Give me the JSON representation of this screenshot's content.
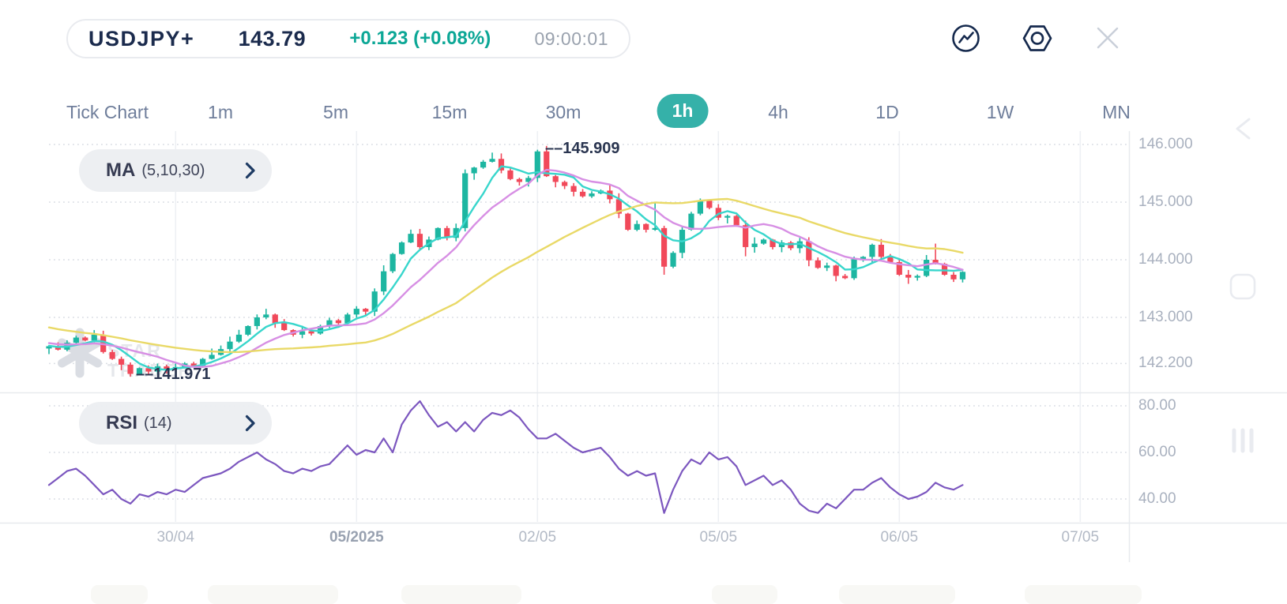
{
  "header": {
    "symbol": "USDJPY+",
    "price": "143.79",
    "change": "+0.123 (+0.08%)",
    "time": "09:00:01"
  },
  "toolbar_icons": [
    "trend-line-icon",
    "settings-nut-icon",
    "close-icon"
  ],
  "timeframes": {
    "items": [
      {
        "label": "Tick Chart",
        "active": false
      },
      {
        "label": "1m",
        "active": false
      },
      {
        "label": "5m",
        "active": false
      },
      {
        "label": "15m",
        "active": false
      },
      {
        "label": "30m",
        "active": false
      },
      {
        "label": "1h",
        "active": true
      },
      {
        "label": "4h",
        "active": false
      },
      {
        "label": "1D",
        "active": false
      },
      {
        "label": "1W",
        "active": false
      },
      {
        "label": "MN",
        "active": false
      }
    ]
  },
  "indicators": {
    "ma": {
      "name": "MA",
      "params": "(5,10,30)"
    },
    "rsi": {
      "name": "RSI",
      "params": "(14)"
    }
  },
  "watermark": {
    "line1": "STAR",
    "line2": "TRADER"
  },
  "chart_data": {
    "type": "candlestick",
    "instrument": "USDJPY+",
    "interval": "1h",
    "legend": [
      "MA (5,10,30)",
      "RSI (14)"
    ],
    "price_axis": {
      "ticks": [
        {
          "label": "146.000",
          "value": 146.0
        },
        {
          "label": "145.000",
          "value": 145.0
        },
        {
          "label": "144.000",
          "value": 144.0
        },
        {
          "label": "143.000",
          "value": 143.0
        },
        {
          "label": "142.200",
          "value": 142.2
        }
      ]
    },
    "rsi_axis": {
      "ticks": [
        {
          "label": "80.00",
          "value": 80
        },
        {
          "label": "60.00",
          "value": 60
        },
        {
          "label": "40.00",
          "value": 40
        }
      ]
    },
    "time_axis": {
      "ticks": [
        {
          "label": "30/04",
          "index": 14,
          "bold": false
        },
        {
          "label": "05/2025",
          "index": 34,
          "bold": true
        },
        {
          "label": "02/05",
          "index": 54,
          "bold": false
        },
        {
          "label": "05/05",
          "index": 74,
          "bold": false
        },
        {
          "label": "06/05",
          "index": 94,
          "bold": false
        },
        {
          "label": "07/05",
          "index": 114,
          "bold": false
        }
      ]
    },
    "key_levels": {
      "high": 145.909,
      "low": 141.971,
      "high_label": "––145.909",
      "low_label": "––141.971"
    },
    "candlesticks": {
      "lead_in": [
        143.4,
        143.34,
        143.3,
        143.26,
        143.21,
        143.17,
        143.12,
        143.08,
        143.04,
        143.0,
        142.96,
        142.92,
        142.88,
        142.85,
        142.81,
        142.78,
        142.75,
        142.72,
        142.7,
        142.68,
        142.66,
        142.64,
        142.62,
        142.6,
        142.58,
        142.56,
        142.55,
        142.53,
        142.5,
        142.46
      ],
      "closes": [
        142.5,
        142.44,
        142.56,
        142.65,
        142.6,
        142.7,
        142.4,
        142.28,
        142.18,
        142.02,
        142.12,
        142.06,
        142.15,
        142.1,
        142.14,
        142.2,
        142.16,
        142.28,
        142.35,
        142.45,
        142.58,
        142.7,
        142.85,
        143.0,
        143.05,
        142.9,
        142.78,
        142.7,
        142.76,
        142.72,
        142.85,
        142.95,
        142.9,
        143.05,
        143.15,
        143.1,
        143.45,
        143.8,
        144.1,
        144.3,
        144.45,
        144.22,
        144.35,
        144.55,
        144.38,
        144.55,
        145.5,
        145.6,
        145.7,
        145.75,
        145.55,
        145.4,
        145.35,
        145.42,
        145.88,
        145.45,
        145.35,
        145.28,
        145.18,
        145.1,
        145.15,
        145.2,
        145.05,
        144.8,
        144.52,
        144.62,
        144.52,
        144.55,
        143.88,
        144.12,
        144.52,
        144.8,
        145.03,
        144.9,
        144.73,
        144.76,
        144.6,
        144.22,
        144.28,
        144.35,
        144.22,
        144.3,
        144.2,
        144.32,
        143.99,
        143.86,
        143.9,
        143.72,
        143.68,
        144.01,
        144.05,
        144.26,
        144.05,
        143.96,
        143.74,
        143.69,
        143.72,
        144.0,
        143.93,
        143.74,
        143.66,
        143.79
      ],
      "wick_overrides": [
        {
          "i": 9,
          "low": 141.971
        },
        {
          "i": 54,
          "high": 145.909
        },
        {
          "i": 67,
          "high": 144.98
        },
        {
          "i": 68,
          "low": 143.74
        },
        {
          "i": 77,
          "low": 144.06
        },
        {
          "i": 98,
          "high": 144.28
        }
      ]
    },
    "moving_averages": {
      "periods": [
        5,
        10,
        30
      ]
    },
    "rsi_values": [
      46,
      49,
      52,
      53,
      50,
      46,
      42,
      44,
      40,
      38,
      42,
      41,
      43,
      42,
      44,
      43,
      46,
      49,
      50,
      51,
      53,
      56,
      58,
      60,
      57,
      55,
      52,
      51,
      53,
      52,
      54,
      55,
      59,
      63,
      59,
      61,
      60,
      66,
      60,
      72,
      78,
      82,
      76,
      71,
      73,
      69,
      73,
      69,
      74,
      77,
      76,
      78,
      75,
      70,
      66,
      66,
      68,
      65,
      62,
      60,
      61,
      62,
      58,
      53,
      50,
      52,
      50,
      51,
      34,
      44,
      52,
      57,
      55,
      60,
      57,
      58,
      54,
      46,
      48,
      50,
      46,
      48,
      44,
      38,
      35,
      34,
      38,
      36,
      40,
      44,
      44,
      47,
      49,
      45,
      42,
      40,
      41,
      43,
      47,
      45,
      44,
      46
    ],
    "colors": {
      "up": "#1db6a1",
      "down": "#f1495a",
      "ma5": "#38d6cc",
      "ma10": "#d78fe4",
      "ma30": "#e9d967",
      "rsi": "#7c57bf",
      "accent": "#35b1a9",
      "navy": "#1b2b4d",
      "change_teal": "#0ca796",
      "grid_dotted": "#d8dce3",
      "grid_vertical": "#eef0f4",
      "separator": "#e7eaee",
      "watermark": "#dadde3"
    }
  }
}
